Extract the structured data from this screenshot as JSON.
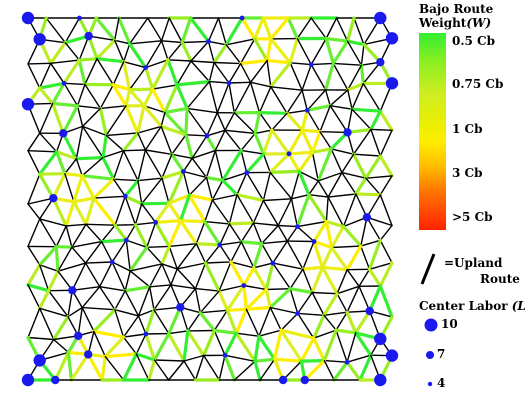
{
  "legend": {
    "weight_title": "Bajo Route",
    "weight_subtitle": "Weight",
    "weight_symbol": "(W)",
    "color_ticks": [
      "0.5 Cb",
      "0.75 Cb",
      "1 Cb",
      "3 Cb",
      ">5 Cb"
    ],
    "upland_label_line1": "=Upland",
    "upland_label_line2": "Route",
    "labor_title": "Center Labor",
    "labor_symbol": "(L)",
    "labor_sizes": [
      "10",
      "7",
      "4"
    ]
  },
  "colors": {
    "upland_route": "#000000",
    "center": "#1a1aee",
    "weight_scale": [
      "#33ee33",
      "#ccee22",
      "#ffee00",
      "#ff8800",
      "#ff2200"
    ]
  }
}
